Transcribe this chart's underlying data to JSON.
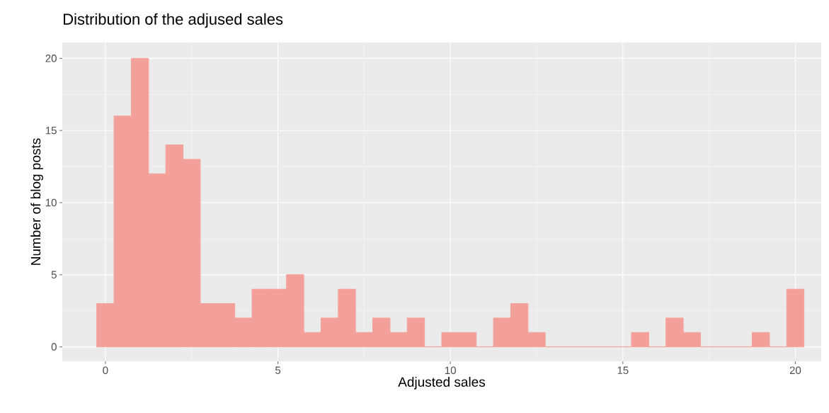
{
  "chart_data": {
    "type": "histogram",
    "title": "Distribution of the adjused sales",
    "xlabel": "Adjusted sales",
    "ylabel": "Number of blog posts",
    "bins": [
      -0.25,
      0.25,
      0.75,
      1.25,
      1.75,
      2.25,
      2.75,
      3.25,
      3.75,
      4.25,
      4.75,
      5.25,
      5.75,
      6.25,
      6.75,
      7.25,
      7.75,
      8.25,
      8.75,
      9.25,
      9.75,
      10.25,
      10.75,
      11.25,
      11.75,
      12.25,
      12.75,
      13.25,
      13.75,
      14.25,
      14.75,
      15.25,
      15.75,
      16.25,
      16.75,
      17.25,
      17.75,
      18.25,
      18.75,
      19.25,
      19.75,
      20.25
    ],
    "values": [
      3,
      16,
      20,
      12,
      14,
      13,
      3,
      3,
      2,
      4,
      4,
      5,
      1,
      2,
      4,
      1,
      2,
      1,
      2,
      0,
      1,
      1,
      0,
      2,
      3,
      1,
      0,
      0,
      0,
      0,
      0,
      1,
      0,
      2,
      1,
      0,
      0,
      0,
      1,
      0,
      4
    ],
    "color": "#f4a09a",
    "xlim": [
      -1.25,
      20.75
    ],
    "ylim": [
      -1,
      21.1
    ],
    "xticks": [
      0,
      5,
      10,
      15,
      20
    ],
    "yticks": [
      0,
      5,
      10,
      15,
      20
    ],
    "grid": true
  }
}
